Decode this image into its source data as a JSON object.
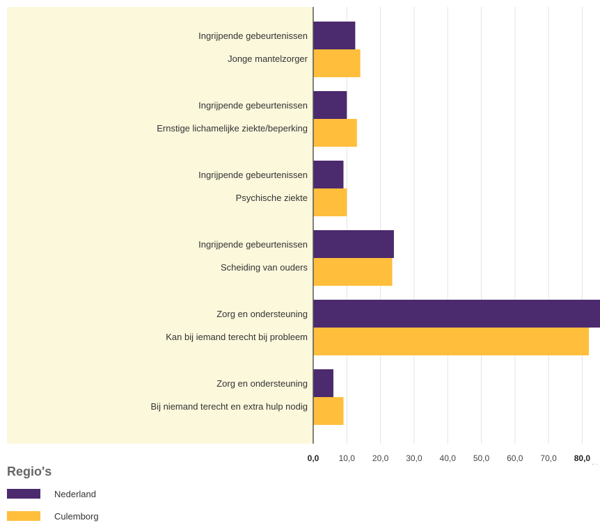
{
  "chart_data": {
    "type": "bar",
    "orientation": "horizontal",
    "categories": [
      {
        "group": "Ingrijpende gebeurtenissen",
        "label": "Jonge mantelzorger"
      },
      {
        "group": "Ingrijpende gebeurtenissen",
        "label": "Ernstige lichamelijke ziekte/beperking"
      },
      {
        "group": "Ingrijpende gebeurtenissen",
        "label": "Psychische ziekte"
      },
      {
        "group": "Ingrijpende gebeurtenissen",
        "label": "Scheiding van ouders"
      },
      {
        "group": "Zorg en ondersteuning",
        "label": "Kan bij iemand terecht bij probleem"
      },
      {
        "group": "Zorg en ondersteuning",
        "label": "Bij niemand terecht en extra hulp nodig"
      }
    ],
    "series": [
      {
        "name": "Nederland",
        "color": "#4b2a6e",
        "values": [
          12.5,
          10.0,
          9.0,
          24.0,
          87.0,
          6.0
        ]
      },
      {
        "name": "Culemborg",
        "color": "#ffbe3c",
        "values": [
          14.0,
          13.0,
          10.0,
          23.5,
          82.0,
          9.0
        ]
      }
    ],
    "x_ticks": [
      "0,0",
      "10,0",
      "20,0",
      "30,0",
      "40,0",
      "50,0",
      "60,0",
      "70,0",
      "80,0"
    ],
    "x_unit": "%",
    "xlim": [
      0,
      85
    ],
    "grid": true,
    "legend": {
      "title": "Regio's",
      "placement": "bottom-left"
    }
  }
}
